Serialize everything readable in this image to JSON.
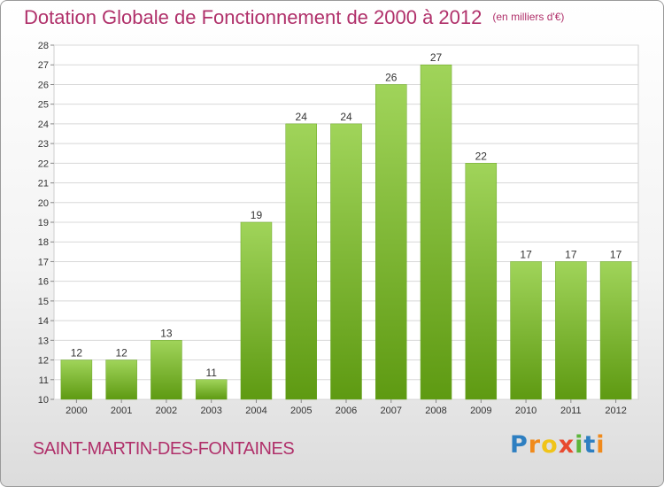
{
  "header": {
    "title": "Dotation Globale de Fonctionnement de 2000 à 2012",
    "unit": "(en milliers d'€)"
  },
  "footer": {
    "commune": "SAINT-MARTIN-DES-FONTAINES",
    "brand_letters": [
      "P",
      "r",
      "o",
      "x",
      "i",
      "t",
      "i"
    ]
  },
  "colors": {
    "title": "#b0306a",
    "bar_top": "#a0d45a",
    "bar_bottom": "#5e9a12"
  },
  "chart_data": {
    "type": "bar",
    "categories": [
      "2000",
      "2001",
      "2002",
      "2003",
      "2004",
      "2005",
      "2006",
      "2007",
      "2008",
      "2009",
      "2010",
      "2011",
      "2012"
    ],
    "values": [
      12,
      12,
      13,
      11,
      19,
      24,
      24,
      26,
      27,
      22,
      17,
      17,
      17
    ],
    "title": "Dotation Globale de Fonctionnement de 2000 à 2012",
    "subtitle": "(en milliers d'€)",
    "ylim": [
      10,
      28
    ],
    "yticks": [
      10,
      11,
      12,
      13,
      14,
      15,
      16,
      17,
      18,
      19,
      20,
      21,
      22,
      23,
      24,
      25,
      26,
      27,
      28
    ],
    "grid": true,
    "data_labels": true
  }
}
